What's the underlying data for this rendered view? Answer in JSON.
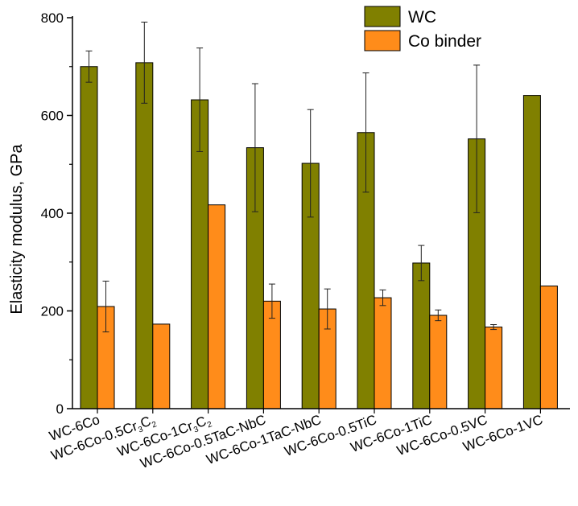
{
  "chart_data": {
    "type": "bar",
    "title": "",
    "xlabel": "",
    "ylabel": "Elasticity modulus, GPa",
    "ylim": [
      0,
      800
    ],
    "yticks": [
      0,
      200,
      400,
      600,
      800
    ],
    "grid": false,
    "legend_position": "top-right",
    "categories": [
      {
        "label": "WC-6Co",
        "parts": [
          {
            "t": "WC-6Co"
          }
        ]
      },
      {
        "label": "WC-6Co-0.5Cr3C2",
        "parts": [
          {
            "t": "WC-6Co-0.5Cr"
          },
          {
            "t": "3",
            "sub": true
          },
          {
            "t": "C"
          },
          {
            "t": "2",
            "sub": true
          }
        ]
      },
      {
        "label": "WC-6Co-1Cr3C2",
        "parts": [
          {
            "t": "WC-6Co-1Cr"
          },
          {
            "t": "3",
            "sub": true
          },
          {
            "t": "C"
          },
          {
            "t": "2",
            "sub": true
          }
        ]
      },
      {
        "label": "WC-6Co-0.5TaC-NbC",
        "parts": [
          {
            "t": "WC-6Co-0.5TaC-NbC"
          }
        ]
      },
      {
        "label": "WC-6Co-1TaC-NbC",
        "parts": [
          {
            "t": "WC-6Co-1TaC-NbC"
          }
        ]
      },
      {
        "label": "WC-6Co-0.5TiC",
        "parts": [
          {
            "t": "WC-6Co-0.5TiC"
          }
        ]
      },
      {
        "label": "WC-6Co-1TiC",
        "parts": [
          {
            "t": "WC-6Co-1TiC"
          }
        ]
      },
      {
        "label": "WC-6Co-0.5VC",
        "parts": [
          {
            "t": "WC-6Co-0.5VC"
          }
        ]
      },
      {
        "label": "WC-6Co-1VC",
        "parts": [
          {
            "t": "WC-6Co-1VC"
          }
        ]
      }
    ],
    "series": [
      {
        "name": "WC",
        "color": "#808000",
        "values": [
          700,
          708,
          632,
          534,
          502,
          565,
          298,
          552,
          641
        ],
        "errors": [
          32,
          83,
          106,
          131,
          110,
          122,
          36,
          151,
          0
        ]
      },
      {
        "name": "Co binder",
        "color": "#ff8c1a",
        "values": [
          209,
          173,
          417,
          220,
          204,
          227,
          191,
          167,
          251
        ],
        "errors": [
          52,
          0,
          0,
          35,
          41,
          16,
          11,
          5,
          0
        ]
      }
    ]
  }
}
